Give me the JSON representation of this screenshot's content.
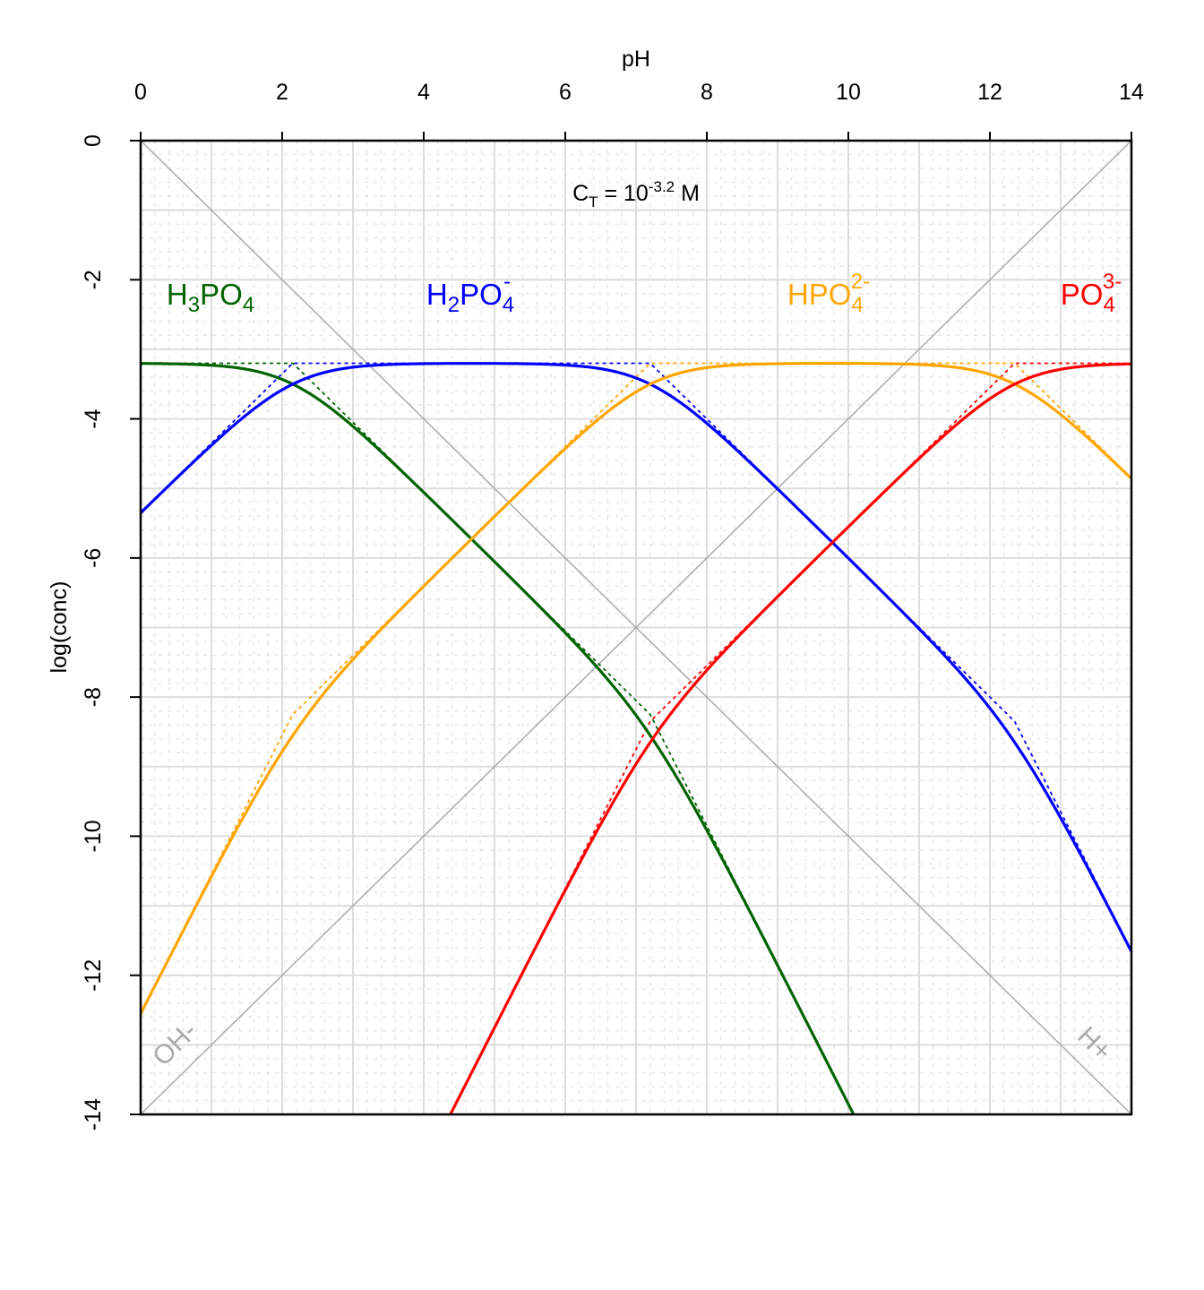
{
  "chart_data": {
    "type": "line",
    "title": "",
    "xlabel": "pH",
    "ylabel": "log(conc)",
    "xlim": [
      0,
      14
    ],
    "ylim": [
      -14,
      0
    ],
    "x_ticks": [
      "0",
      "2",
      "4",
      "6",
      "8",
      "10",
      "12",
      "14"
    ],
    "y_ticks": [
      "0",
      "-2",
      "-4",
      "-6",
      "-8",
      "-10",
      "-12",
      "-14"
    ],
    "x_axis_position": "top",
    "grid": true,
    "annotation": {
      "base": "C",
      "sub": "T",
      "mid": " = 10",
      "sup": "-3.2",
      "tail": " M"
    },
    "log_CT": -3.2,
    "pKw": 14,
    "pKa": [
      2.15,
      7.2,
      12.35
    ],
    "series": [
      {
        "name": "H3PO4",
        "label": {
          "parts": [
            "H",
            "3",
            "PO",
            "4",
            ""
          ]
        },
        "color": "#006400",
        "protons_lost": 0
      },
      {
        "name": "H2PO4-",
        "label": {
          "parts": [
            "H",
            "2",
            "PO",
            "4",
            "-"
          ]
        },
        "color": "#0000FF",
        "protons_lost": 1
      },
      {
        "name": "HPO4 2-",
        "label": {
          "parts": [
            "HPO",
            "",
            "",
            "4",
            "2-"
          ]
        },
        "color": "#FFA500",
        "protons_lost": 2
      },
      {
        "name": "PO4 3-",
        "label": {
          "parts": [
            "PO",
            "",
            "",
            "4",
            "3-"
          ]
        },
        "color": "#FF0000",
        "protons_lost": 3
      }
    ],
    "water_lines": {
      "oh_label": "OH-",
      "h_label": "H+",
      "color": "#AAAAAA"
    },
    "asymptotes": "dotted"
  }
}
